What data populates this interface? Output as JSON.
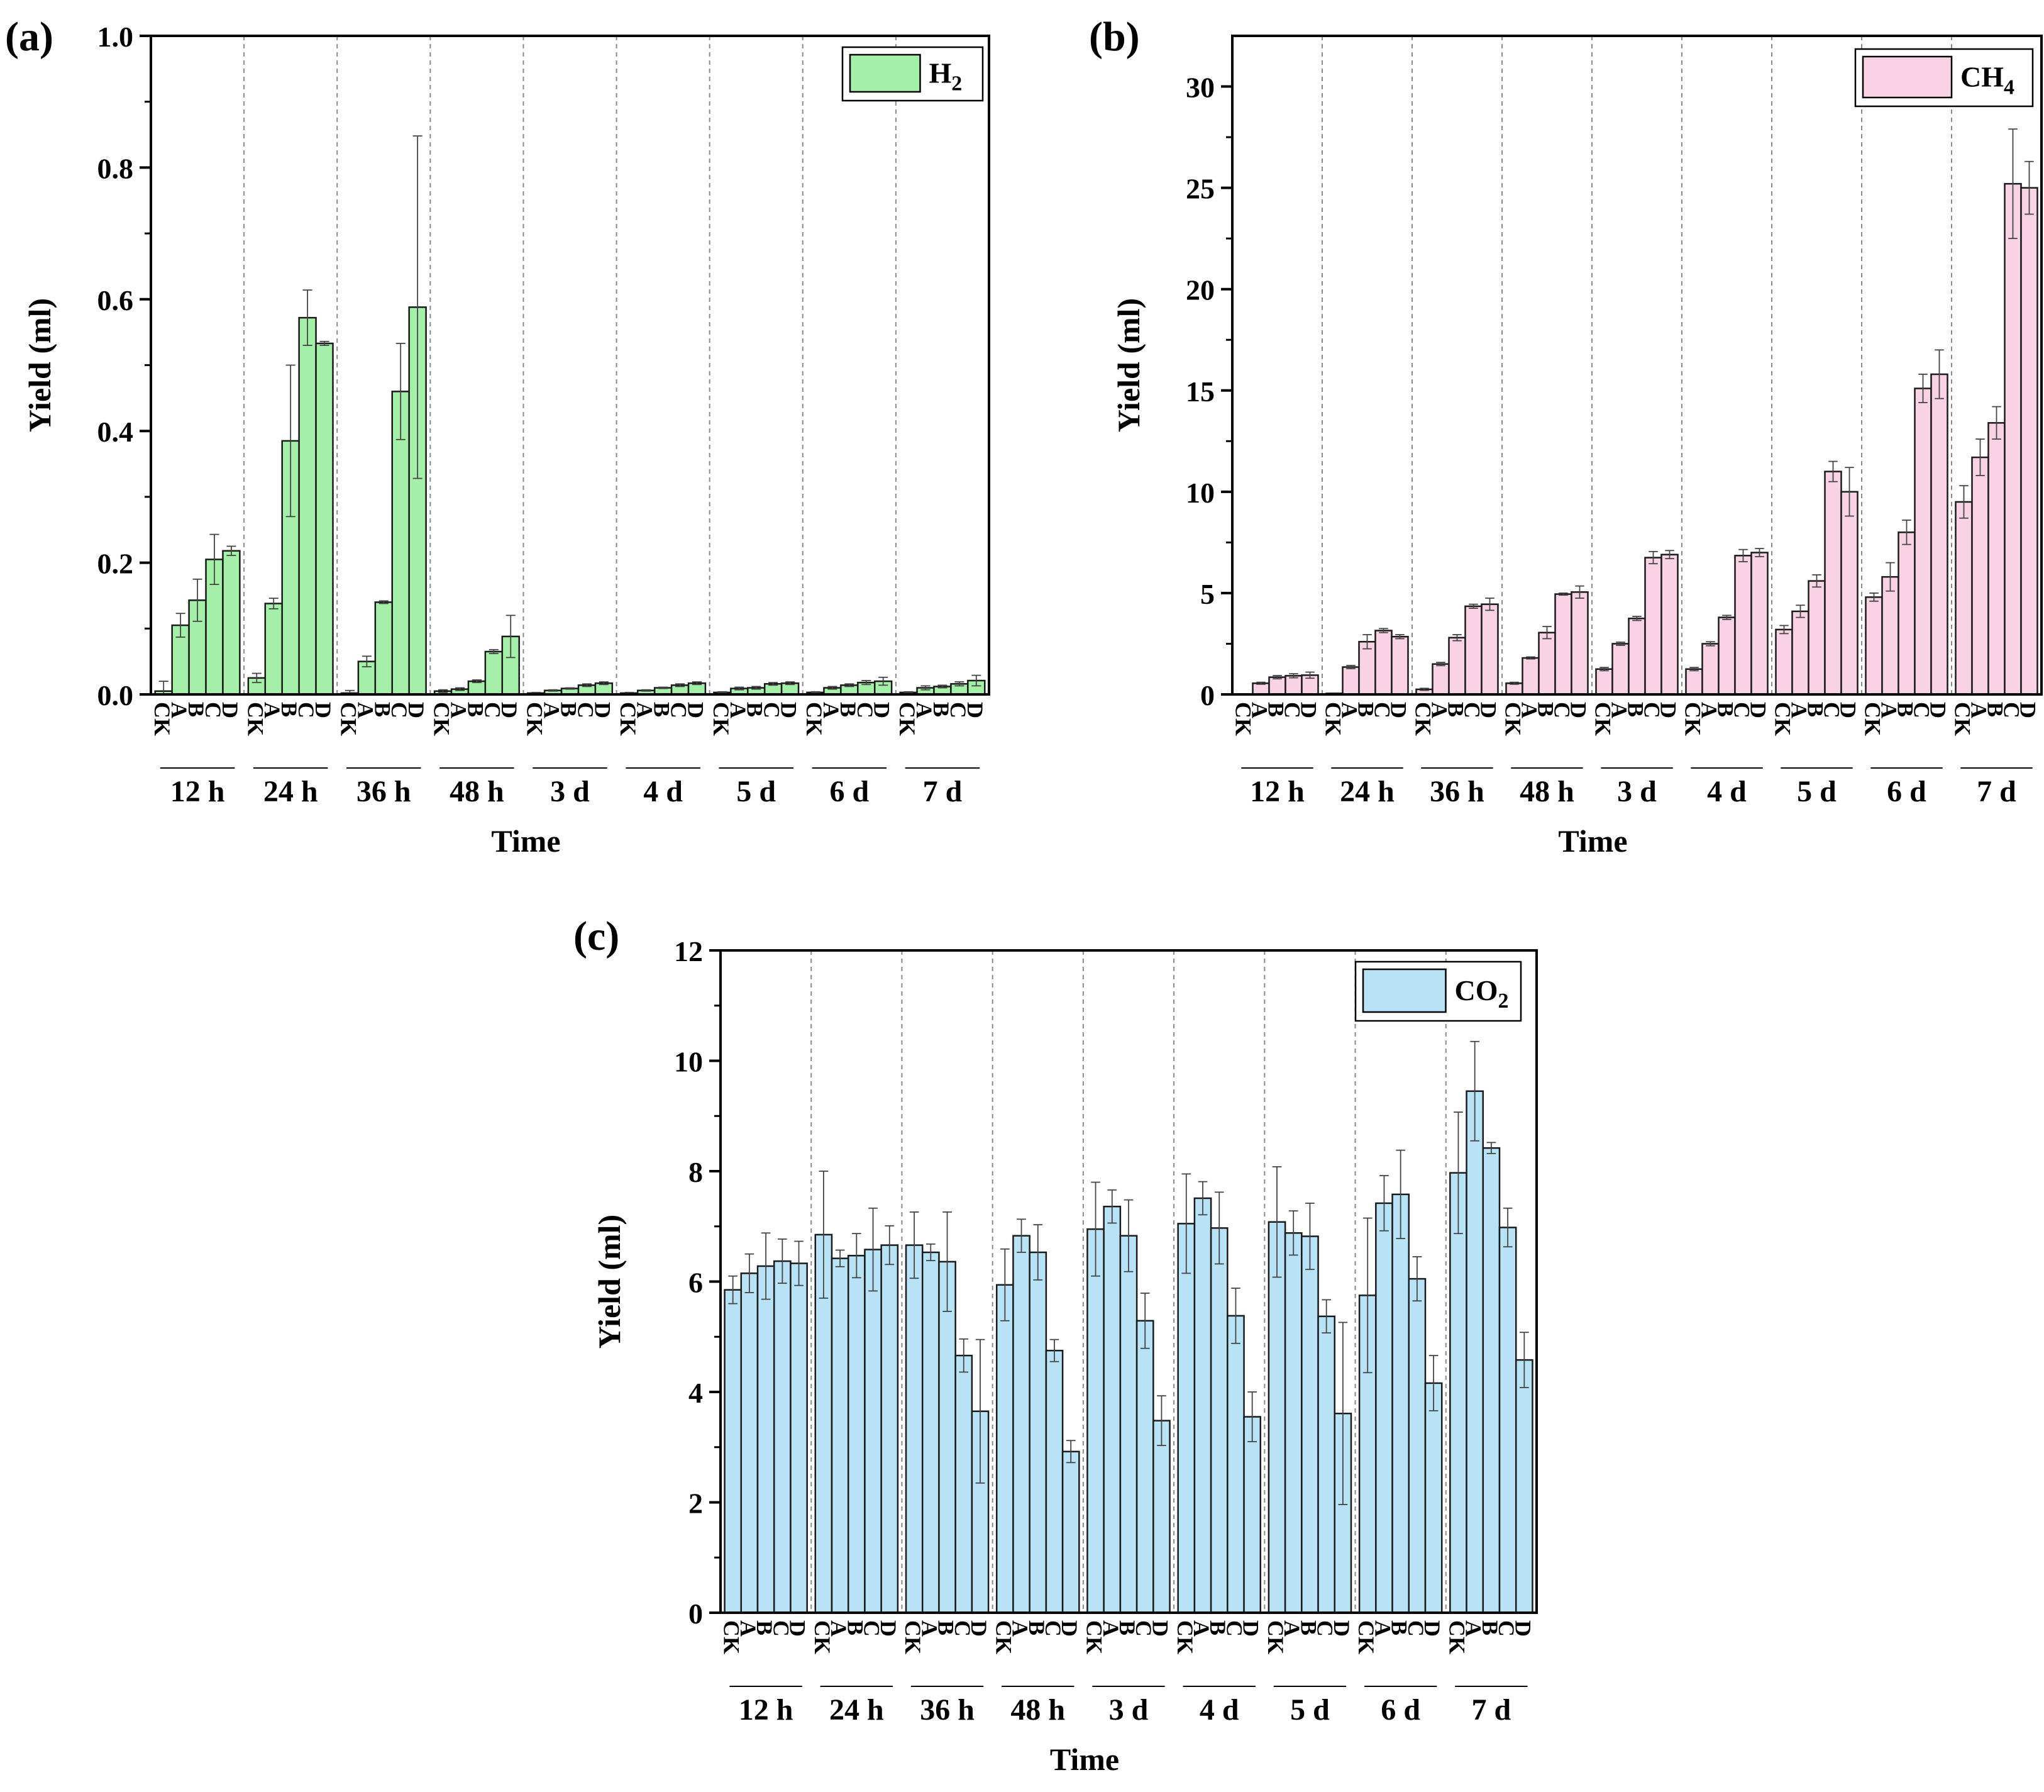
{
  "chart_data": [
    {
      "type": "bar",
      "panel": "(a)",
      "gas": "H",
      "gas_sub": "2",
      "xlabel": "Time",
      "ylabel": "Yield (ml)",
      "ylim": [
        0,
        1.0
      ],
      "yticks": [
        "0.0",
        "0.2",
        "0.4",
        "0.6",
        "0.8",
        "1.0"
      ],
      "ytick_values": [
        0,
        0.2,
        0.4,
        0.6,
        0.8,
        1.0
      ],
      "color": "#a4f0a8",
      "group_labels": [
        "12 h",
        "24 h",
        "36 h",
        "48 h",
        "3 d",
        "4 d",
        "5 d",
        "6 d",
        "7 d"
      ],
      "treatments": [
        "CK",
        "A",
        "B",
        "C",
        "D"
      ],
      "legend_position": "top-right",
      "values": [
        [
          0.005,
          0.105,
          0.143,
          0.205,
          0.218
        ],
        [
          0.025,
          0.138,
          0.385,
          0.572,
          0.533
        ],
        [
          0.002,
          0.05,
          0.14,
          0.46,
          0.588
        ],
        [
          0.005,
          0.008,
          0.02,
          0.065,
          0.088
        ],
        [
          0.002,
          0.006,
          0.009,
          0.014,
          0.017
        ],
        [
          0.002,
          0.006,
          0.01,
          0.014,
          0.017
        ],
        [
          0.003,
          0.009,
          0.01,
          0.016,
          0.017
        ],
        [
          0.003,
          0.01,
          0.014,
          0.018,
          0.02
        ],
        [
          0.003,
          0.01,
          0.012,
          0.016,
          0.021
        ]
      ],
      "errors": [
        [
          0.015,
          0.018,
          0.032,
          0.038,
          0.007
        ],
        [
          0.007,
          0.008,
          0.115,
          0.042,
          0.003
        ],
        [
          0.004,
          0.008,
          0.002,
          0.073,
          0.26
        ],
        [
          0.002,
          0.002,
          0.002,
          0.003,
          0.032
        ],
        [
          0.001,
          0.001,
          0.001,
          0.002,
          0.002
        ],
        [
          0.001,
          0.001,
          0.001,
          0.002,
          0.002
        ],
        [
          0.001,
          0.002,
          0.002,
          0.002,
          0.002
        ],
        [
          0.001,
          0.002,
          0.002,
          0.003,
          0.006
        ],
        [
          0.001,
          0.003,
          0.002,
          0.003,
          0.008
        ]
      ]
    },
    {
      "type": "bar",
      "panel": "(b)",
      "gas": "CH",
      "gas_sub": "4",
      "xlabel": "Time",
      "ylabel": "Yield (ml)",
      "ylim": [
        0,
        32.5
      ],
      "yticks": [
        "0",
        "5",
        "10",
        "15",
        "20",
        "25",
        "30"
      ],
      "ytick_values": [
        0,
        5,
        10,
        15,
        20,
        25,
        30
      ],
      "color": "#f9d3e5",
      "group_labels": [
        "12 h",
        "24 h",
        "36 h",
        "48 h",
        "3 d",
        "4 d",
        "5 d",
        "6 d",
        "7 d"
      ],
      "treatments": [
        "CK",
        "A",
        "B",
        "C",
        "D"
      ],
      "legend_position": "top-right",
      "values": [
        [
          0.0,
          0.55,
          0.85,
          0.92,
          0.95
        ],
        [
          0.05,
          1.35,
          2.6,
          3.15,
          2.85
        ],
        [
          0.25,
          1.5,
          2.8,
          4.35,
          4.45
        ],
        [
          0.55,
          1.8,
          3.05,
          4.95,
          5.05
        ],
        [
          1.25,
          2.5,
          3.75,
          6.75,
          6.9
        ],
        [
          1.25,
          2.5,
          3.8,
          6.85,
          7.0
        ],
        [
          3.2,
          4.1,
          5.6,
          11.0,
          10.0
        ],
        [
          4.8,
          5.8,
          8.0,
          15.1,
          15.8
        ],
        [
          9.5,
          11.7,
          13.4,
          25.2,
          25.0
        ]
      ],
      "errors": [
        [
          0.0,
          0.05,
          0.08,
          0.1,
          0.15
        ],
        [
          0.02,
          0.08,
          0.35,
          0.1,
          0.1
        ],
        [
          0.05,
          0.08,
          0.15,
          0.1,
          0.3
        ],
        [
          0.05,
          0.05,
          0.3,
          0.05,
          0.3
        ],
        [
          0.08,
          0.08,
          0.1,
          0.3,
          0.2
        ],
        [
          0.08,
          0.1,
          0.1,
          0.3,
          0.2
        ],
        [
          0.2,
          0.3,
          0.3,
          0.5,
          1.2
        ],
        [
          0.2,
          0.7,
          0.6,
          0.7,
          1.2
        ],
        [
          0.8,
          0.9,
          0.8,
          2.7,
          1.3
        ]
      ]
    },
    {
      "type": "bar",
      "panel": "(c)",
      "gas": "CO",
      "gas_sub": "2",
      "xlabel": "Time",
      "ylabel": "Yield (ml)",
      "ylim": [
        0,
        12
      ],
      "yticks": [
        "0",
        "2",
        "4",
        "6",
        "8",
        "10",
        "12"
      ],
      "ytick_values": [
        0,
        2,
        4,
        6,
        8,
        10,
        12
      ],
      "color": "#b8e2f6",
      "group_labels": [
        "12 h",
        "24 h",
        "36 h",
        "48 h",
        "3 d",
        "4 d",
        "5 d",
        "6 d",
        "7 d"
      ],
      "treatments": [
        "CK",
        "A",
        "B",
        "C",
        "D"
      ],
      "legend_position": "top-right",
      "values": [
        [
          5.85,
          6.15,
          6.28,
          6.37,
          6.33
        ],
        [
          6.85,
          6.42,
          6.47,
          6.58,
          6.66
        ],
        [
          6.66,
          6.53,
          6.36,
          4.66,
          3.65
        ],
        [
          5.94,
          6.83,
          6.53,
          4.75,
          2.92
        ],
        [
          6.95,
          7.36,
          6.83,
          5.29,
          3.48
        ],
        [
          7.05,
          7.51,
          6.97,
          5.38,
          3.55
        ],
        [
          7.08,
          6.88,
          6.82,
          5.37,
          3.61
        ],
        [
          5.75,
          7.42,
          7.58,
          6.05,
          4.16
        ],
        [
          7.97,
          9.45,
          8.42,
          6.98,
          4.58
        ]
      ],
      "errors": [
        [
          0.25,
          0.35,
          0.6,
          0.4,
          0.4
        ],
        [
          1.15,
          0.15,
          0.4,
          0.75,
          0.35
        ],
        [
          0.6,
          0.15,
          0.9,
          0.3,
          1.3
        ],
        [
          0.65,
          0.3,
          0.5,
          0.2,
          0.2
        ],
        [
          0.85,
          0.3,
          0.65,
          0.5,
          0.45
        ],
        [
          0.9,
          0.3,
          0.65,
          0.5,
          0.45
        ],
        [
          1.0,
          0.4,
          0.6,
          0.3,
          1.65
        ],
        [
          1.4,
          0.5,
          0.8,
          0.4,
          0.5
        ],
        [
          1.1,
          0.9,
          0.1,
          0.35,
          0.5
        ]
      ]
    }
  ]
}
